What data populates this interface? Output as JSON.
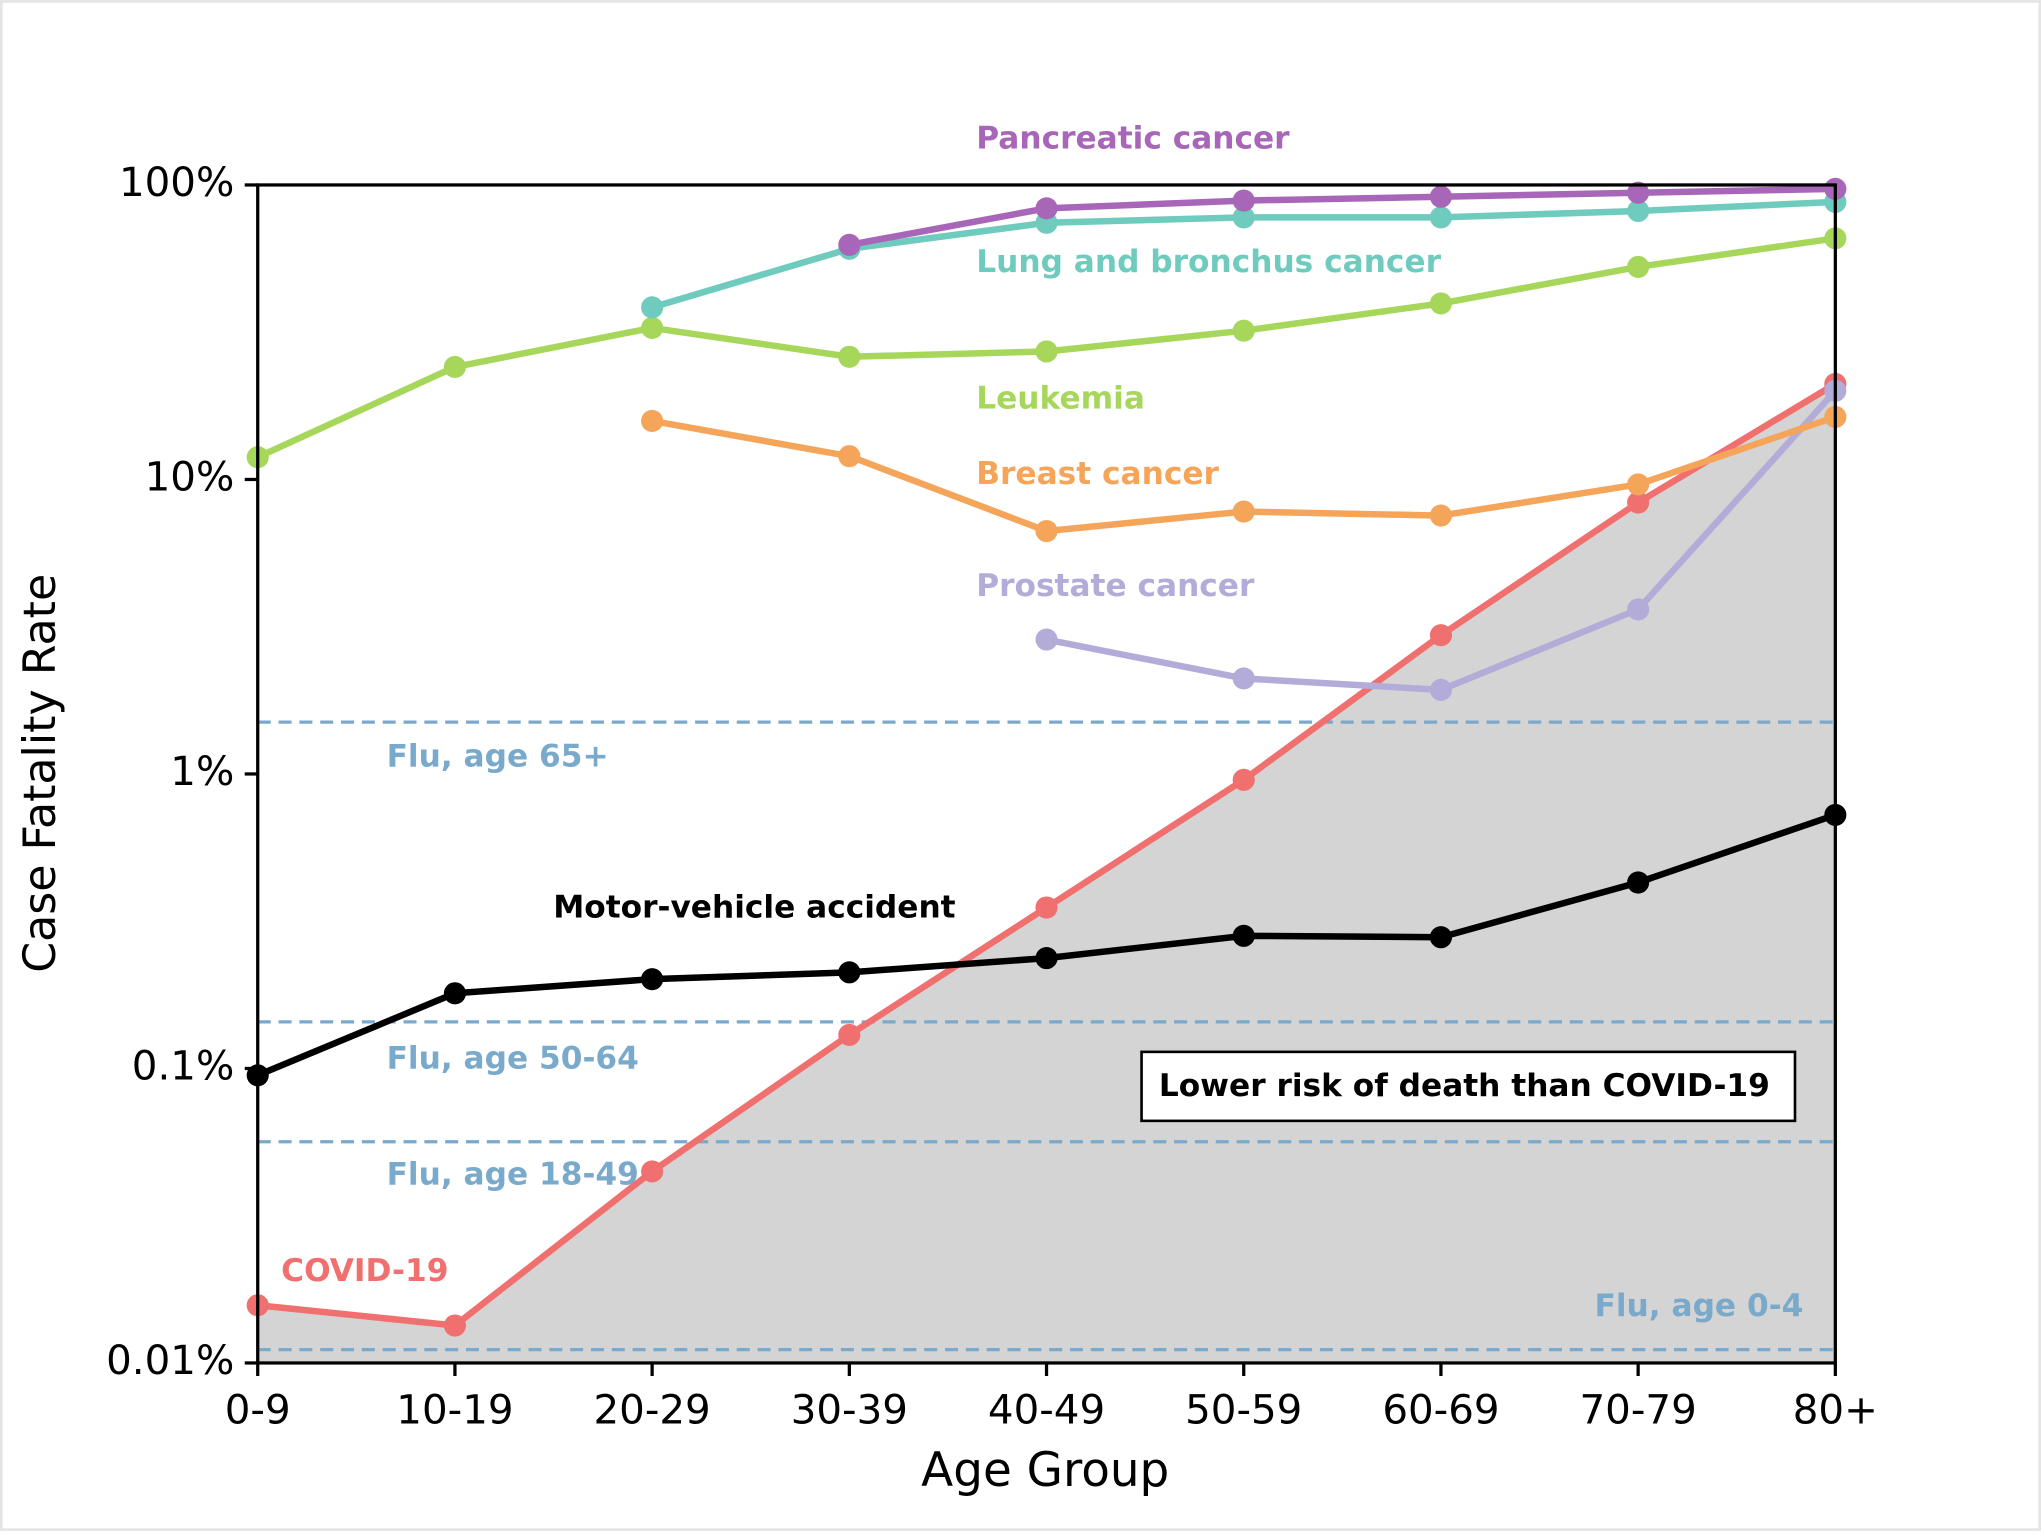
{
  "chart_data": {
    "type": "line",
    "x_label": "Age Group",
    "y_label": "Case Fatality Rate",
    "categories": [
      "0-9",
      "10-19",
      "20-29",
      "30-39",
      "40-49",
      "50-59",
      "60-69",
      "70-79",
      "80+"
    ],
    "log_scale": true,
    "ylim": [
      0.01,
      100
    ],
    "yticks": [
      {
        "value": 0.01,
        "label": "0.01%"
      },
      {
        "value": 0.1,
        "label": "0.1%"
      },
      {
        "value": 1,
        "label": "1%"
      },
      {
        "value": 10,
        "label": "10%"
      },
      {
        "value": 100,
        "label": "100%"
      }
    ],
    "shade_series": 0,
    "shade_color": "#d4d4d4",
    "series": [
      {
        "name": "COVID-19",
        "color": "#f07070",
        "values": [
          0.0157,
          0.0134,
          0.0447,
          0.13,
          0.352,
          0.955,
          2.96,
          8.35,
          21.1
        ]
      },
      {
        "name": "Motor-vehicle accident",
        "color": "#000000",
        "values": [
          0.0948,
          0.18,
          0.201,
          0.212,
          0.237,
          0.282,
          0.279,
          0.428,
          0.726
        ]
      },
      {
        "name": "Pancreatic cancer",
        "color": "#a866b8",
        "values": [
          null,
          null,
          null,
          62.6,
          83.3,
          88.5,
          91.2,
          94.1,
          97
        ]
      },
      {
        "name": "Lung and bronchus cancer",
        "color": "#6ecbbd",
        "values": [
          null,
          null,
          38.4,
          60.7,
          74.4,
          77.6,
          77.6,
          81.6,
          87.6
        ]
      },
      {
        "name": "Leukemia",
        "color": "#a6d75a",
        "values": [
          11.9,
          24.1,
          32.7,
          26.1,
          27.2,
          32,
          39.6,
          52.7,
          65.9
        ]
      },
      {
        "name": "Breast cancer",
        "color": "#f5a55a",
        "values": [
          null,
          null,
          15.8,
          12,
          6.68,
          7.78,
          7.54,
          9.62,
          16.3
        ]
      },
      {
        "name": "Prostate cancer",
        "color": "#b4acd8",
        "values": [
          null,
          null,
          null,
          null,
          2.86,
          2.11,
          1.93,
          3.62,
          20
        ]
      }
    ],
    "reference_lines": [
      {
        "label": "Flu, age 65+",
        "value": 1.5
      },
      {
        "label": "Flu, age 50-64",
        "value": 0.144
      },
      {
        "label": "Flu, age 18-49",
        "value": 0.0564
      },
      {
        "label": "Flu, age 0-4",
        "value": 0.0111
      }
    ],
    "reference_color": "#7aaacb",
    "annotation": "Lower risk of death than COVID-19"
  }
}
